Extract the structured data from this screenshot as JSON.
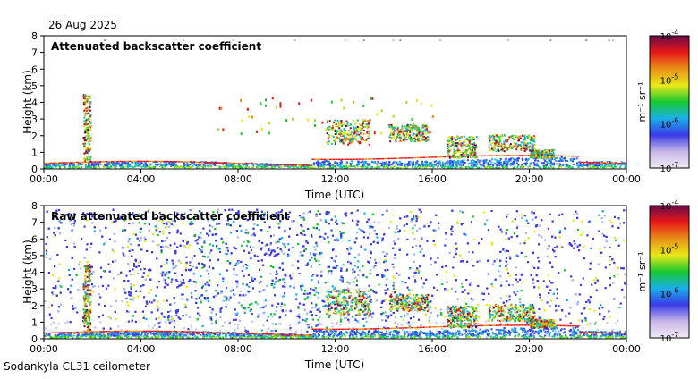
{
  "header": {
    "date": "26 Aug 2025"
  },
  "footer": {
    "instrument": "Sodankyla CL31 ceilometer"
  },
  "colorbar_gradient": [
    "#f0eaf4",
    "#c8b8e8",
    "#3a3ae8",
    "#1ab0e8",
    "#18c830",
    "#e8e818",
    "#e89018",
    "#e81818",
    "#6a0a4a"
  ],
  "chart_data": [
    {
      "type": "heatmap",
      "title": "Attenuated backscatter coefficient",
      "xlabel": "Time (UTC)",
      "ylabel": "Height (km)",
      "x_ticks": [
        "00:00",
        "04:00",
        "08:00",
        "12:00",
        "16:00",
        "20:00",
        "00:00"
      ],
      "x_range_hours": [
        0,
        24
      ],
      "ylim": [
        0,
        8
      ],
      "y_ticks": [
        "0",
        "1",
        "2",
        "3",
        "4",
        "5",
        "6",
        "7",
        "8"
      ],
      "colorbar": {
        "label": "m⁻¹ sr⁻¹",
        "scale": "log",
        "range": [
          1e-07,
          0.0001
        ],
        "ticks": [
          {
            "base": "10",
            "exp": "-4",
            "value": -4
          },
          {
            "base": "10",
            "exp": "-5",
            "value": -5
          },
          {
            "base": "10",
            "exp": "-6",
            "value": -6
          },
          {
            "base": "10",
            "exp": "-7",
            "value": -7
          }
        ]
      }
    },
    {
      "type": "heatmap",
      "title": "Raw attenuated backscatter coefficient",
      "xlabel": "Time (UTC)",
      "ylabel": "Height (km)",
      "x_ticks": [
        "00:00",
        "04:00",
        "08:00",
        "12:00",
        "16:00",
        "20:00",
        "00:00"
      ],
      "x_range_hours": [
        0,
        24
      ],
      "ylim": [
        0,
        8
      ],
      "y_ticks": [
        "0",
        "1",
        "2",
        "3",
        "4",
        "5",
        "6",
        "7",
        "8"
      ],
      "colorbar": {
        "label": "m⁻¹ sr⁻¹",
        "scale": "log",
        "range": [
          1e-07,
          0.0001
        ],
        "ticks": [
          {
            "base": "10",
            "exp": "-4",
            "value": -4
          },
          {
            "base": "10",
            "exp": "-5",
            "value": -5
          },
          {
            "base": "10",
            "exp": "-6",
            "value": -6
          },
          {
            "base": "10",
            "exp": "-7",
            "value": -7
          }
        ]
      }
    }
  ]
}
